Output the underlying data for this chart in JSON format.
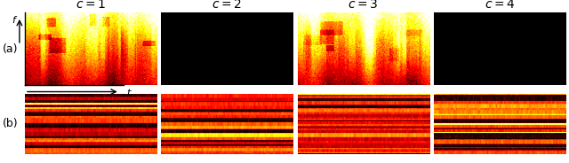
{
  "title_labels": [
    "$c = 1$",
    "$c = 2$",
    "$c = 3$",
    "$c = 4$"
  ],
  "row_labels_a": "(a)",
  "row_labels_b": "(b)",
  "row_a_active": [
    true,
    false,
    true,
    false
  ],
  "fig_width": 6.4,
  "fig_height": 1.84,
  "dpi": 100,
  "background_color": "#ffffff",
  "seed": 42,
  "title_fontsize": 10,
  "label_fontsize": 9,
  "cmap_a": "hot",
  "cmap_b": "hot"
}
